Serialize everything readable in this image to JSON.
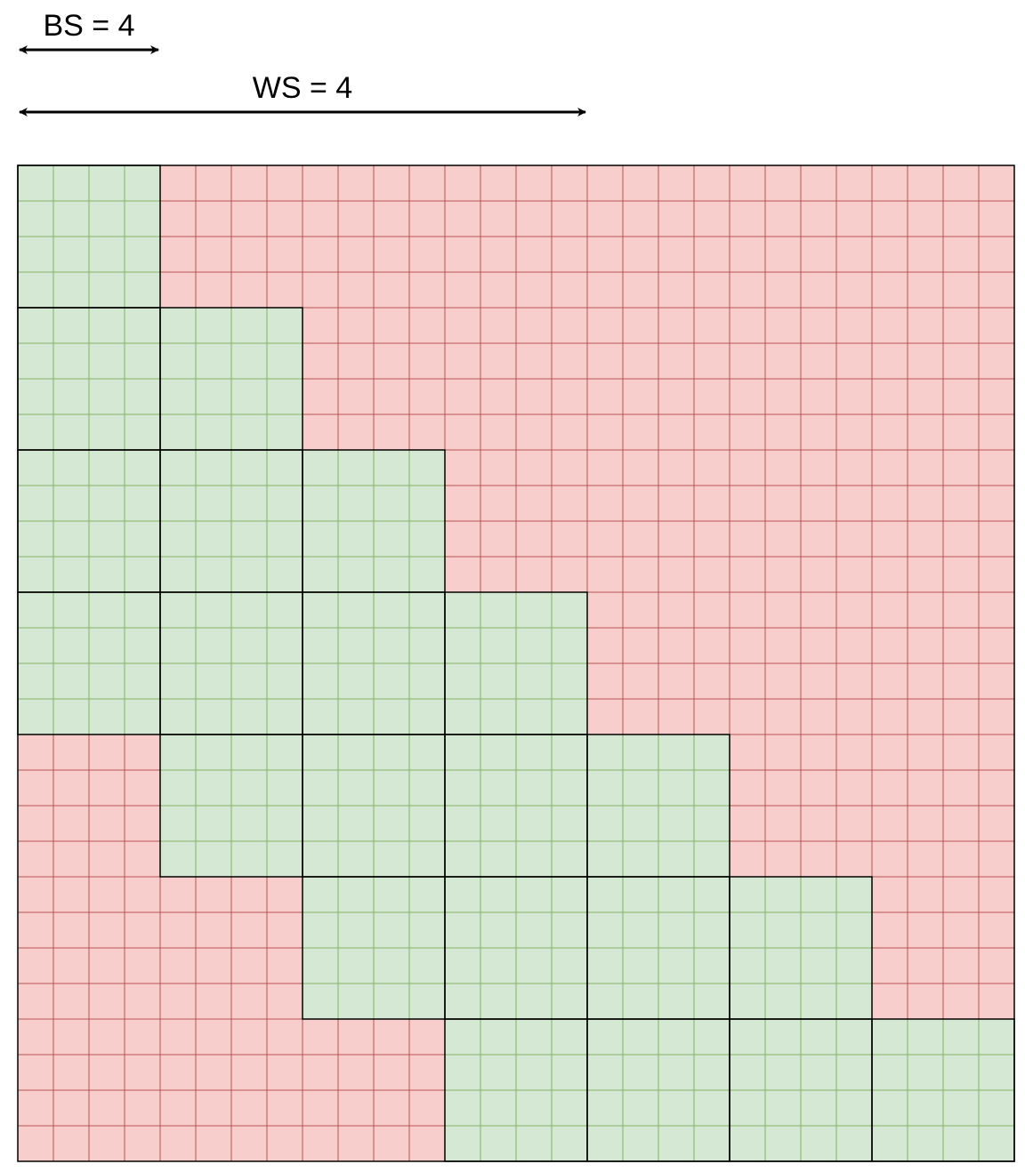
{
  "labels": {
    "block_size": "BS = 4",
    "window_size": "WS = 4"
  },
  "grid": {
    "rows": 28,
    "cols": 28,
    "block_size": 4,
    "window_blocks": 4
  },
  "colors": {
    "active_fill": "#d5e8d4",
    "active_line": "#82b366",
    "masked_fill": "#f8cecc",
    "masked_line": "#b85450",
    "block_border": "#000000"
  }
}
